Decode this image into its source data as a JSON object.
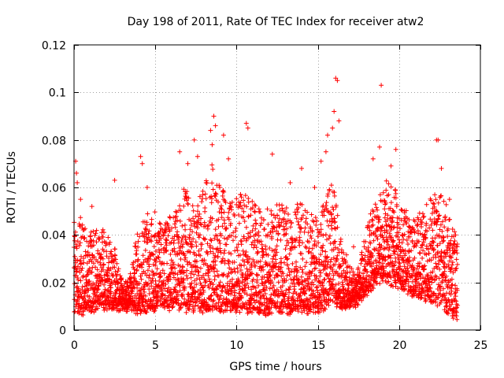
{
  "chart_data": {
    "type": "scatter",
    "title": "Day 198 of 2011, Rate Of TEC Index for receiver atw2",
    "xlabel": "GPS time / hours",
    "ylabel": "ROTI / TECUs",
    "xlim": [
      0,
      25
    ],
    "ylim": [
      0,
      0.12
    ],
    "xticks": [
      0,
      5,
      10,
      15,
      20,
      25
    ],
    "yticks": [
      0,
      0.02,
      0.04,
      0.06,
      0.08,
      0.1,
      0.12
    ],
    "ytick_labels": [
      "0",
      "0.02",
      "0.04",
      "0.06",
      "0.08",
      "0.1",
      "0.12"
    ],
    "grid": true,
    "marker": "plus",
    "color": "#ff0000",
    "envelope": {
      "x": [
        0,
        0.5,
        1,
        1.5,
        2,
        2.5,
        3,
        3.5,
        4,
        4.5,
        5,
        5.5,
        6,
        6.5,
        7,
        7.5,
        8,
        8.5,
        9,
        9.5,
        10,
        10.5,
        11,
        11.5,
        12,
        12.5,
        13,
        13.5,
        14,
        14.5,
        15,
        15.5,
        16,
        16.5,
        17,
        17.5,
        18,
        18.5,
        19,
        19.5,
        20,
        20.5,
        21,
        21.5,
        22,
        22.5,
        23,
        23.5
      ],
      "low": [
        0.009,
        0.008,
        0.009,
        0.01,
        0.01,
        0.01,
        0.009,
        0.009,
        0.008,
        0.009,
        0.009,
        0.01,
        0.01,
        0.009,
        0.009,
        0.009,
        0.009,
        0.008,
        0.009,
        0.009,
        0.009,
        0.009,
        0.008,
        0.008,
        0.008,
        0.008,
        0.008,
        0.008,
        0.008,
        0.008,
        0.009,
        0.01,
        0.012,
        0.01,
        0.01,
        0.012,
        0.016,
        0.02,
        0.022,
        0.02,
        0.018,
        0.016,
        0.016,
        0.014,
        0.012,
        0.012,
        0.008,
        0.006
      ],
      "high": [
        0.05,
        0.045,
        0.04,
        0.045,
        0.04,
        0.035,
        0.02,
        0.025,
        0.045,
        0.05,
        0.05,
        0.045,
        0.05,
        0.055,
        0.06,
        0.05,
        0.06,
        0.07,
        0.06,
        0.055,
        0.055,
        0.06,
        0.055,
        0.05,
        0.05,
        0.055,
        0.05,
        0.05,
        0.055,
        0.05,
        0.05,
        0.055,
        0.065,
        0.035,
        0.025,
        0.025,
        0.045,
        0.055,
        0.06,
        0.065,
        0.055,
        0.05,
        0.045,
        0.05,
        0.055,
        0.06,
        0.05,
        0.04
      ]
    },
    "spikes": [
      [
        0.1,
        0.071
      ],
      [
        0.15,
        0.066
      ],
      [
        0.2,
        0.062
      ],
      [
        0.4,
        0.055
      ],
      [
        1.1,
        0.052
      ],
      [
        2.5,
        0.063
      ],
      [
        4.1,
        0.073
      ],
      [
        4.2,
        0.07
      ],
      [
        4.5,
        0.06
      ],
      [
        6.5,
        0.075
      ],
      [
        7.0,
        0.07
      ],
      [
        7.4,
        0.08
      ],
      [
        7.6,
        0.073
      ],
      [
        8.4,
        0.084
      ],
      [
        8.6,
        0.09
      ],
      [
        8.7,
        0.086
      ],
      [
        8.5,
        0.078
      ],
      [
        9.2,
        0.082
      ],
      [
        9.5,
        0.072
      ],
      [
        10.6,
        0.087
      ],
      [
        10.7,
        0.085
      ],
      [
        12.2,
        0.074
      ],
      [
        13.3,
        0.062
      ],
      [
        14.0,
        0.068
      ],
      [
        14.8,
        0.06
      ],
      [
        15.2,
        0.071
      ],
      [
        15.5,
        0.075
      ],
      [
        15.6,
        0.082
      ],
      [
        15.9,
        0.085
      ],
      [
        16.1,
        0.106
      ],
      [
        16.2,
        0.105
      ],
      [
        16.0,
        0.092
      ],
      [
        16.3,
        0.088
      ],
      [
        17.2,
        0.035
      ],
      [
        18.4,
        0.072
      ],
      [
        18.8,
        0.077
      ],
      [
        18.9,
        0.103
      ],
      [
        19.5,
        0.069
      ],
      [
        19.8,
        0.076
      ],
      [
        22.3,
        0.08
      ],
      [
        22.4,
        0.08
      ],
      [
        22.6,
        0.068
      ],
      [
        23.1,
        0.055
      ]
    ]
  }
}
